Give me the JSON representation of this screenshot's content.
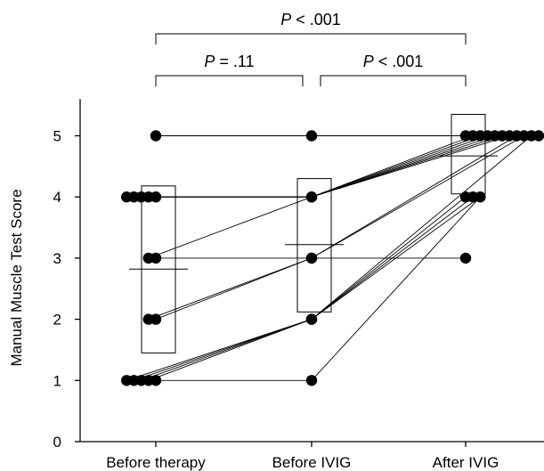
{
  "chart_data": {
    "type": "scatter",
    "title": "",
    "xlabel": "",
    "ylabel": "Manual Muscle Test Score",
    "ylim": [
      0,
      5.5
    ],
    "y_ticks": [
      "0",
      "1",
      "2",
      "3",
      "4",
      "5"
    ],
    "categories": [
      "Before therapy",
      "Before IVIG",
      "After IVIG"
    ],
    "significance": [
      {
        "italic": "P",
        "text": " = .11",
        "from": "Before therapy",
        "to": "Before IVIG"
      },
      {
        "italic": "P",
        "text": " < .001",
        "from": "Before IVIG",
        "to": "After IVIG"
      },
      {
        "italic": "P",
        "text": " < .001",
        "from": "Before therapy",
        "to": "After IVIG"
      }
    ],
    "group_summary": [
      {
        "group": "Before therapy",
        "mean": 2.82,
        "box_low": 1.45,
        "box_high": 4.18
      },
      {
        "group": "Before IVIG",
        "mean": 3.22,
        "box_low": 2.12,
        "box_high": 4.3
      },
      {
        "group": "After IVIG",
        "mean": 4.67,
        "box_low": 4.05,
        "box_high": 5.35
      }
    ],
    "points": [
      {
        "group": "Before therapy",
        "values": [
          5,
          4,
          4,
          4,
          4,
          4,
          3,
          3,
          2,
          2,
          1,
          1,
          1,
          1,
          1
        ]
      },
      {
        "group": "Before IVIG",
        "values": [
          5,
          4,
          4,
          3,
          3,
          2,
          2,
          1
        ]
      },
      {
        "group": "After IVIG",
        "values": [
          5,
          5,
          5,
          5,
          5,
          5,
          5,
          5,
          5,
          5,
          5,
          4,
          4,
          4,
          3
        ]
      }
    ],
    "trajectories": [
      [
        5,
        5,
        5
      ],
      [
        4,
        4,
        5
      ],
      [
        4,
        4,
        5
      ],
      [
        4,
        4,
        5
      ],
      [
        4,
        4,
        5
      ],
      [
        4,
        4,
        5
      ],
      [
        3,
        4,
        5
      ],
      [
        3,
        3,
        3
      ],
      [
        2,
        3,
        5
      ],
      [
        2,
        3,
        5
      ],
      [
        1,
        2,
        5
      ],
      [
        1,
        2,
        4
      ],
      [
        1,
        2,
        4
      ],
      [
        1,
        2,
        4
      ],
      [
        1,
        1,
        4
      ]
    ]
  }
}
